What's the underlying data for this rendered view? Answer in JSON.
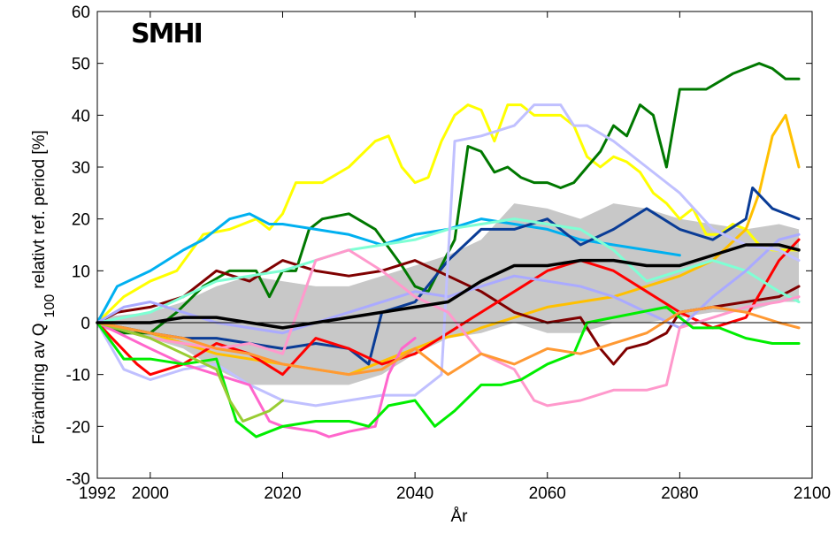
{
  "chart_data": {
    "type": "line",
    "title": "",
    "logo": "SMHI",
    "xlabel": "År",
    "ylabel": "Förändring av Q",
    "ylabel_subscript": "100",
    "ylabel_suffix": "relativt ref. period [%]",
    "xlim": [
      1992,
      2100
    ],
    "ylim": [
      -30,
      60
    ],
    "x_ticks": [
      1992,
      2000,
      2020,
      2040,
      2060,
      2080,
      2100
    ],
    "y_ticks": [
      -30,
      -20,
      -10,
      0,
      10,
      20,
      30,
      40,
      50,
      60
    ],
    "grid": false,
    "legend": "none",
    "zero_line": 0,
    "band": {
      "color": "#c8c8c8",
      "x": [
        1992,
        2000,
        2005,
        2010,
        2015,
        2020,
        2025,
        2030,
        2035,
        2040,
        2045,
        2050,
        2055,
        2060,
        2065,
        2070,
        2075,
        2080,
        2085,
        2090,
        2095,
        2098
      ],
      "upper": [
        1,
        2,
        4,
        7,
        9,
        8,
        7,
        7,
        9,
        11,
        13,
        16,
        23,
        22,
        20,
        23,
        22,
        20,
        19,
        18,
        19,
        18
      ],
      "lower": [
        -1,
        -3,
        -5,
        -9,
        -12,
        -12,
        -12,
        -12,
        -10,
        -6,
        -3,
        -2,
        0,
        -2,
        -2,
        0,
        0,
        1,
        2,
        2,
        4,
        4
      ]
    },
    "series": [
      {
        "color": "#ffff00",
        "width": 3,
        "x": [
          1992,
          1996,
          2000,
          2004,
          2008,
          2012,
          2016,
          2018,
          2020,
          2022,
          2026,
          2030,
          2034,
          2036,
          2038,
          2040,
          2042,
          2044,
          2046,
          2048,
          2050,
          2052,
          2054,
          2056,
          2058,
          2060,
          2062,
          2064,
          2066,
          2068,
          2070,
          2072,
          2074,
          2076,
          2078,
          2080,
          2082,
          2084,
          2086,
          2088,
          2090,
          2092,
          2094,
          2096,
          2098
        ],
        "values": [
          0,
          5,
          8,
          10,
          17,
          18,
          20,
          18,
          21,
          27,
          27,
          30,
          35,
          36,
          30,
          27,
          28,
          35,
          40,
          42,
          41,
          35,
          42,
          42,
          40,
          40,
          40,
          38,
          32,
          30,
          32,
          31,
          29,
          25,
          23,
          20,
          22,
          17,
          17,
          19,
          18,
          15,
          14,
          14,
          14
        ]
      },
      {
        "color": "#007800",
        "width": 3,
        "x": [
          1992,
          1996,
          2000,
          2004,
          2008,
          2012,
          2016,
          2018,
          2020,
          2022,
          2024,
          2026,
          2030,
          2034,
          2038,
          2040,
          2042,
          2044,
          2046,
          2048,
          2050,
          2052,
          2054,
          2056,
          2058,
          2060,
          2062,
          2064,
          2066,
          2068,
          2070,
          2072,
          2074,
          2076,
          2078,
          2080,
          2084,
          2088,
          2090,
          2092,
          2094,
          2096,
          2098
        ],
        "values": [
          0,
          -2,
          -2,
          2,
          7,
          10,
          10,
          5,
          10,
          10,
          18,
          20,
          21,
          18,
          11,
          7,
          6,
          11,
          16,
          34,
          33,
          29,
          30,
          28,
          27,
          27,
          26,
          27,
          30,
          33,
          38,
          36,
          42,
          40,
          30,
          45,
          45,
          48,
          49,
          50,
          49,
          47,
          47
        ]
      },
      {
        "color": "#ffc000",
        "width": 3,
        "x": [
          1992,
          2000,
          2010,
          2020,
          2030,
          2040,
          2044,
          2048,
          2050,
          2055,
          2060,
          2065,
          2070,
          2075,
          2080,
          2085,
          2090,
          2092,
          2094,
          2096,
          2098
        ],
        "values": [
          0,
          -2,
          -6,
          -8,
          -10,
          -5,
          -3,
          -2,
          -1,
          1,
          3,
          4,
          5,
          7,
          9,
          12,
          18,
          25,
          36,
          40,
          30
        ]
      },
      {
        "color": "#00b0f0",
        "width": 3,
        "x": [
          1992,
          1995,
          2000,
          2005,
          2008,
          2012,
          2015,
          2018,
          2020,
          2025,
          2030,
          2035,
          2040,
          2045,
          2050,
          2055,
          2060,
          2065,
          2070,
          2075,
          2080
        ],
        "values": [
          0,
          7,
          10,
          14,
          16,
          20,
          21,
          19,
          19,
          18,
          17,
          15,
          17,
          18,
          20,
          19,
          18,
          16,
          15,
          14,
          13
        ]
      },
      {
        "color": "#0a3c96",
        "width": 3,
        "x": [
          1992,
          2000,
          2005,
          2010,
          2015,
          2020,
          2025,
          2030,
          2033,
          2035,
          2040,
          2045,
          2050,
          2055,
          2060,
          2065,
          2070,
          2075,
          2080,
          2085,
          2090,
          2091,
          2094,
          2098
        ],
        "values": [
          0,
          -2,
          -3,
          -3,
          -4,
          -5,
          -4,
          -5,
          -8,
          2,
          4,
          12,
          18,
          18,
          20,
          15,
          18,
          22,
          18,
          16,
          20,
          26,
          22,
          20
        ]
      },
      {
        "color": "#7f0000",
        "width": 3,
        "x": [
          1992,
          1995,
          2000,
          2005,
          2010,
          2015,
          2020,
          2025,
          2030,
          2035,
          2040,
          2045,
          2050,
          2055,
          2060,
          2065,
          2068,
          2070,
          2072,
          2075,
          2078,
          2080,
          2085,
          2090,
          2095,
          2098
        ],
        "values": [
          0,
          2,
          3,
          5,
          10,
          8,
          12,
          10,
          9,
          10,
          12,
          9,
          6,
          2,
          0,
          1,
          -5,
          -8,
          -5,
          -4,
          -2,
          2,
          3,
          4,
          5,
          7
        ]
      },
      {
        "color": "#ff0000",
        "width": 3,
        "x": [
          1992,
          1998,
          2000,
          2005,
          2010,
          2015,
          2020,
          2025,
          2030,
          2035,
          2040,
          2045,
          2050,
          2055,
          2060,
          2065,
          2070,
          2075,
          2080,
          2085,
          2090,
          2095,
          2098
        ],
        "values": [
          0,
          -8,
          -10,
          -8,
          -4,
          -6,
          -10,
          -3,
          -5,
          -8,
          -6,
          -2,
          2,
          6,
          10,
          12,
          10,
          6,
          2,
          -1,
          1,
          12,
          16
        ]
      },
      {
        "color": "#7fffd4",
        "width": 3,
        "x": [
          1992,
          2000,
          2005,
          2010,
          2015,
          2020,
          2025,
          2030,
          2035,
          2040,
          2045,
          2050,
          2055,
          2060,
          2065,
          2070,
          2075,
          2080,
          2085,
          2090,
          2095,
          2098
        ],
        "values": [
          0,
          2,
          5,
          8,
          9,
          10,
          12,
          14,
          15,
          16,
          18,
          19,
          20,
          19,
          18,
          14,
          8,
          10,
          12,
          10,
          6,
          4
        ]
      },
      {
        "color": "#aaaaff",
        "width": 3,
        "x": [
          1992,
          1996,
          2000,
          2005,
          2010,
          2015,
          2020,
          2025,
          2030,
          2035,
          2040,
          2045,
          2050,
          2055,
          2060,
          2065,
          2070,
          2075,
          2080,
          2085,
          2090,
          2095,
          2098
        ],
        "values": [
          0,
          3,
          4,
          2,
          0,
          -1,
          -2,
          0,
          2,
          4,
          6,
          5,
          7,
          9,
          8,
          7,
          5,
          2,
          -1,
          5,
          10,
          16,
          17
        ]
      },
      {
        "color": "#c0c0ff",
        "width": 3,
        "x": [
          1992,
          1996,
          2000,
          2005,
          2010,
          2015,
          2020,
          2025,
          2030,
          2035,
          2040,
          2044,
          2046,
          2050,
          2055,
          2058,
          2062,
          2064,
          2066,
          2070,
          2075,
          2080,
          2085,
          2090,
          2095,
          2098
        ],
        "values": [
          0,
          -9,
          -11,
          -9,
          -8,
          -12,
          -15,
          -16,
          -15,
          -14,
          -14,
          -10,
          35,
          36,
          38,
          42,
          42,
          38,
          38,
          35,
          30,
          25,
          18,
          15,
          14,
          12
        ]
      },
      {
        "color": "#ff66cc",
        "width": 3,
        "x": [
          1992,
          2000,
          2005,
          2010,
          2015,
          2018,
          2020,
          2025,
          2027,
          2030,
          2034,
          2036,
          2038,
          2040
        ],
        "values": [
          0,
          -5,
          -8,
          -10,
          -12,
          -19,
          -20,
          -21,
          -22,
          -21,
          -20,
          -10,
          -5,
          -3
        ]
      },
      {
        "color": "#ff99cc",
        "width": 3,
        "x": [
          1992,
          2000,
          2005,
          2010,
          2015,
          2020,
          2025,
          2030,
          2035,
          2040,
          2045,
          2050,
          2055,
          2058,
          2060,
          2065,
          2070,
          2075,
          2078,
          2080,
          2085,
          2090,
          2095,
          2098
        ],
        "values": [
          0,
          -3,
          -4,
          -5,
          -4,
          -6,
          12,
          14,
          10,
          5,
          2,
          -6,
          -9,
          -15,
          -16,
          -15,
          -13,
          -13,
          -12,
          -1,
          1,
          3,
          4,
          5
        ]
      },
      {
        "color": "#00ee00",
        "width": 3,
        "x": [
          1992,
          1996,
          2000,
          2005,
          2010,
          2013,
          2016,
          2020,
          2025,
          2030,
          2033,
          2036,
          2040,
          2043,
          2046,
          2050,
          2053,
          2056,
          2060,
          2064,
          2066,
          2070,
          2074,
          2078,
          2082,
          2086,
          2090,
          2094,
          2098
        ],
        "values": [
          0,
          -7,
          -7,
          -8,
          -7,
          -19,
          -22,
          -20,
          -19,
          -19,
          -20,
          -16,
          -15,
          -20,
          -17,
          -12,
          -12,
          -11,
          -8,
          -6,
          0,
          1,
          2,
          3,
          -1,
          -1,
          -3,
          -4,
          -4
        ]
      },
      {
        "color": "#99cc33",
        "width": 3,
        "x": [
          1992,
          2000,
          2005,
          2010,
          2012,
          2014,
          2016,
          2018,
          2020
        ],
        "values": [
          0,
          -3,
          -6,
          -9,
          -15,
          -19,
          -18,
          -17,
          -15
        ]
      },
      {
        "color": "#ff9933",
        "width": 3,
        "x": [
          1992,
          2000,
          2005,
          2010,
          2015,
          2020,
          2025,
          2030,
          2035,
          2040,
          2045,
          2050,
          2055,
          2060,
          2065,
          2070,
          2075,
          2080,
          2085,
          2090,
          2095,
          2098
        ],
        "values": [
          0,
          -2,
          -3,
          -5,
          -6,
          -8,
          -9,
          -10,
          -9,
          -5,
          -10,
          -6,
          -8,
          -5,
          -6,
          -4,
          -2,
          2,
          3,
          2,
          0,
          -1
        ]
      },
      {
        "color": "#000000",
        "width": 3.5,
        "x": [
          1992,
          2000,
          2005,
          2010,
          2015,
          2020,
          2025,
          2030,
          2035,
          2040,
          2045,
          2050,
          2055,
          2060,
          2065,
          2070,
          2075,
          2080,
          2085,
          2090,
          2095,
          2098
        ],
        "values": [
          0,
          0,
          1,
          1,
          0,
          -1,
          0,
          1,
          2,
          3,
          4,
          8,
          11,
          11,
          12,
          12,
          11,
          11,
          13,
          15,
          15,
          14
        ]
      }
    ]
  }
}
